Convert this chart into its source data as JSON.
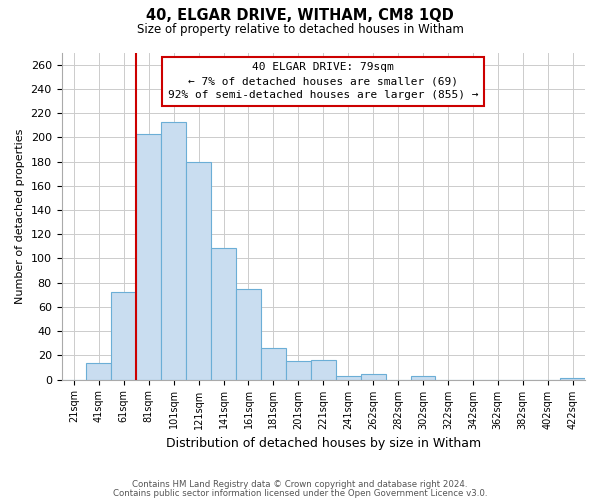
{
  "title": "40, ELGAR DRIVE, WITHAM, CM8 1QD",
  "subtitle": "Size of property relative to detached houses in Witham",
  "xlabel": "Distribution of detached houses by size in Witham",
  "ylabel": "Number of detached properties",
  "bar_labels": [
    "21sqm",
    "41sqm",
    "61sqm",
    "81sqm",
    "101sqm",
    "121sqm",
    "141sqm",
    "161sqm",
    "181sqm",
    "201sqm",
    "221sqm",
    "241sqm",
    "262sqm",
    "282sqm",
    "302sqm",
    "322sqm",
    "342sqm",
    "362sqm",
    "382sqm",
    "402sqm",
    "422sqm"
  ],
  "bar_values": [
    0,
    14,
    72,
    203,
    213,
    180,
    109,
    75,
    26,
    15,
    16,
    3,
    5,
    0,
    3,
    0,
    0,
    0,
    0,
    0,
    1
  ],
  "bar_color": "#c9ddf0",
  "bar_edge_color": "#6baed6",
  "vline_index": 3,
  "vline_color": "#cc0000",
  "annotation_text": "40 ELGAR DRIVE: 79sqm\n← 7% of detached houses are smaller (69)\n92% of semi-detached houses are larger (855) →",
  "annotation_box_color": "#ffffff",
  "annotation_box_edge": "#cc0000",
  "ylim": [
    0,
    270
  ],
  "yticks": [
    0,
    20,
    40,
    60,
    80,
    100,
    120,
    140,
    160,
    180,
    200,
    220,
    240,
    260
  ],
  "footer_line1": "Contains HM Land Registry data © Crown copyright and database right 2024.",
  "footer_line2": "Contains public sector information licensed under the Open Government Licence v3.0.",
  "bg_color": "#ffffff",
  "grid_color": "#cccccc"
}
